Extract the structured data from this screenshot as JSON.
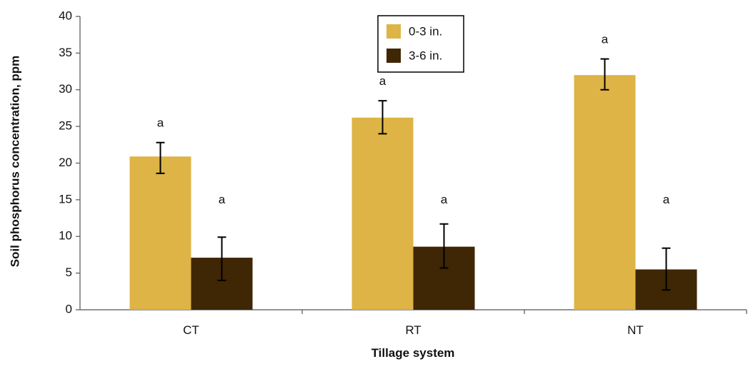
{
  "chart_data": {
    "type": "bar",
    "categories": [
      "CT",
      "RT",
      "NT"
    ],
    "xlabel": "Tillage system",
    "ylabel": "Soil phosphorus concentration, ppm",
    "ylim": [
      0,
      40
    ],
    "yticks": [
      0,
      5,
      10,
      15,
      20,
      25,
      30,
      35,
      40
    ],
    "grid": false,
    "legend_position": "top-center",
    "series": [
      {
        "name": "0-3 in.",
        "color": "#DDB445",
        "values": [
          20.9,
          26.2,
          32.0
        ],
        "error_low": [
          18.6,
          24.0,
          30.0
        ],
        "error_high": [
          22.8,
          28.5,
          34.2
        ],
        "significance": [
          "a",
          "a",
          "a"
        ]
      },
      {
        "name": "3-6 in.",
        "color": "#3F2605",
        "values": [
          7.1,
          8.6,
          5.5
        ],
        "error_low": [
          4.0,
          5.7,
          2.7
        ],
        "error_high": [
          9.9,
          11.7,
          8.4
        ],
        "significance": [
          "a",
          "a",
          "a"
        ]
      }
    ]
  }
}
